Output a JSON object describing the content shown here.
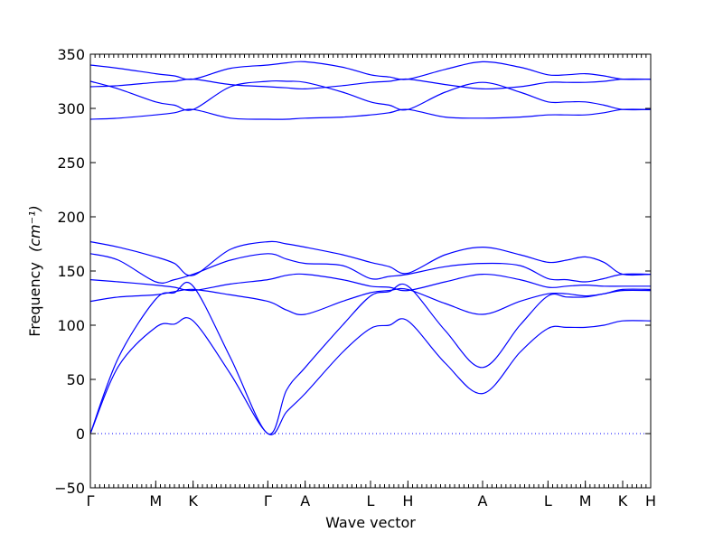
{
  "chart_data": {
    "type": "line",
    "title": "",
    "xlabel": "Wave vector",
    "ylabel": "Frequency",
    "ylabel_unit": "(cm⁻¹)",
    "ylim": [
      -50,
      350
    ],
    "yticks": [
      -50,
      0,
      50,
      100,
      150,
      200,
      250,
      300,
      350
    ],
    "xlim": [
      0,
      30
    ],
    "grid": false,
    "high_symmetry_points": [
      {
        "label": "Γ",
        "x": 0
      },
      {
        "label": "M",
        "x": 3.5
      },
      {
        "label": "K",
        "x": 5.5
      },
      {
        "label": "Γ",
        "x": 9.5
      },
      {
        "label": "A",
        "x": 11.5
      },
      {
        "label": "L",
        "x": 15
      },
      {
        "label": "H",
        "x": 17
      },
      {
        "label": "A",
        "x": 21
      },
      {
        "label": "L",
        "x": 24.5
      },
      {
        "label": "M",
        "x": 26.5
      },
      {
        "label": "K",
        "x": 28.5
      },
      {
        "label": "H",
        "x": 30
      }
    ],
    "zero_line": {
      "y": 0,
      "style": "dotted"
    },
    "series": [
      {
        "x": [
          0,
          1.5,
          3.5,
          4.5,
          5.5,
          7.5,
          9.5,
          10.5,
          11.5,
          13.5,
          15,
          16,
          17,
          19,
          21,
          23,
          24.5,
          25.5,
          26.5,
          27.5,
          28.5,
          30
        ],
        "values": [
          0,
          62,
          98,
          101,
          104,
          55,
          0,
          20,
          37,
          75,
          97,
          100,
          104,
          65,
          37,
          75,
          97,
          98,
          98,
          100,
          104,
          104
        ]
      },
      {
        "x": [
          0,
          1.5,
          3.5,
          4.5,
          5.5,
          7.5,
          9.5,
          10.5,
          11.5,
          13.5,
          15,
          16,
          17,
          19,
          21,
          23,
          24.5,
          25.5,
          26.5,
          27.5,
          28.5,
          30
        ],
        "values": [
          0,
          70,
          124,
          130,
          136,
          70,
          0,
          40,
          61,
          100,
          127,
          131,
          136,
          95,
          61,
          100,
          127,
          126,
          126,
          129,
          132,
          132
        ]
      },
      {
        "x": [
          0,
          1.5,
          3.5,
          4.5,
          5.5,
          7.5,
          9.5,
          10.5,
          11.5,
          13.5,
          15,
          16,
          17,
          19,
          21,
          23,
          24.5,
          25.5,
          26.5,
          27.5,
          28.5,
          30
        ],
        "values": [
          122,
          126,
          128,
          131,
          133,
          128,
          122,
          114,
          110,
          122,
          130,
          132,
          133,
          120,
          110,
          122,
          129,
          129,
          127,
          129,
          133,
          133
        ]
      },
      {
        "x": [
          0,
          1.5,
          3.5,
          4.5,
          5.5,
          7.5,
          9.5,
          10.5,
          11.5,
          13.5,
          15,
          16,
          17,
          19,
          21,
          23,
          24.5,
          25.5,
          26.5,
          27.5,
          28.5,
          30
        ],
        "values": [
          142,
          140,
          137,
          135,
          132,
          138,
          142,
          146,
          147,
          142,
          136,
          135,
          132,
          140,
          147,
          142,
          135,
          136,
          137,
          136,
          136,
          136
        ]
      },
      {
        "x": [
          0,
          1.5,
          3.5,
          4.5,
          5.5,
          7.5,
          9.5,
          10.5,
          11.5,
          13.5,
          15,
          16,
          17,
          19,
          21,
          23,
          24.5,
          25.5,
          26.5,
          27.5,
          28.5,
          30
        ],
        "values": [
          166,
          160,
          140,
          142,
          147,
          160,
          166,
          161,
          157,
          155,
          143,
          145,
          147,
          154,
          157,
          155,
          143,
          142,
          140,
          143,
          147,
          147
        ]
      },
      {
        "x": [
          0,
          1.5,
          3.5,
          4.5,
          5.5,
          7.5,
          9.5,
          10.5,
          11.5,
          13.5,
          15,
          16,
          17,
          19,
          21,
          23,
          24.5,
          25.5,
          26.5,
          27.5,
          28.5,
          30
        ],
        "values": [
          177,
          172,
          163,
          157,
          146,
          170,
          177,
          175,
          172,
          165,
          158,
          154,
          148,
          165,
          172,
          165,
          158,
          160,
          163,
          158,
          147,
          147
        ]
      },
      {
        "x": [
          0,
          1.5,
          3.5,
          4.5,
          5.5,
          7.5,
          9.5,
          10.5,
          11.5,
          13.5,
          15,
          16,
          17,
          19,
          21,
          23,
          24.5,
          25.5,
          26.5,
          27.5,
          28.5,
          30
        ],
        "values": [
          290,
          291,
          294,
          296,
          299,
          291,
          290,
          290,
          291,
          292,
          294,
          296,
          299,
          292,
          291,
          292,
          294,
          294,
          294,
          296,
          299,
          299
        ]
      },
      {
        "x": [
          0,
          1.5,
          3.5,
          4.5,
          5.5,
          7.5,
          9.5,
          10.5,
          11.5,
          13.5,
          15,
          16,
          17,
          19,
          21,
          23,
          24.5,
          25.5,
          26.5,
          27.5,
          28.5,
          30
        ],
        "values": [
          325,
          318,
          306,
          303,
          299,
          320,
          325,
          325,
          324,
          315,
          306,
          303,
          299,
          315,
          324,
          315,
          306,
          306,
          306,
          303,
          299,
          299
        ]
      },
      {
        "x": [
          0,
          1.5,
          3.5,
          4.5,
          5.5,
          7.5,
          9.5,
          10.5,
          11.5,
          13.5,
          15,
          16,
          17,
          19,
          21,
          23,
          24.5,
          25.5,
          26.5,
          27.5,
          28.5,
          30
        ],
        "values": [
          320,
          321,
          324,
          325,
          327,
          322,
          320,
          319,
          318,
          321,
          324,
          325,
          327,
          322,
          318,
          320,
          324,
          324,
          324,
          325,
          327,
          327
        ]
      },
      {
        "x": [
          0,
          1.5,
          3.5,
          4.5,
          5.5,
          7.5,
          9.5,
          10.5,
          11.5,
          13.5,
          15,
          16,
          17,
          19,
          21,
          23,
          24.5,
          25.5,
          26.5,
          27.5,
          28.5,
          30
        ],
        "values": [
          340,
          337,
          332,
          330,
          327,
          337,
          340,
          342,
          343,
          338,
          331,
          329,
          327,
          336,
          343,
          338,
          331,
          331,
          332,
          330,
          327,
          327
        ]
      }
    ]
  }
}
